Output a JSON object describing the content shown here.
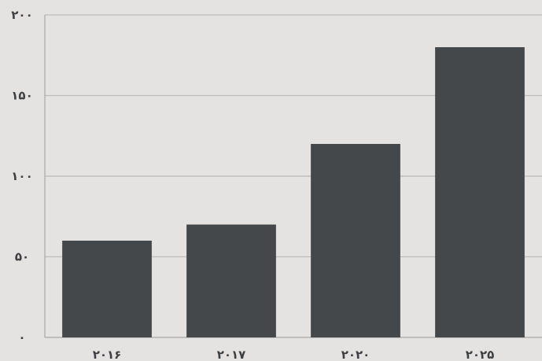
{
  "chart_data": {
    "type": "bar",
    "categories": [
      "۲۰۱۶",
      "۲۰۱۷",
      "۲۰۲۰",
      "۲۰۲۵"
    ],
    "values": [
      60,
      70,
      120,
      180
    ],
    "ylim": [
      0,
      200
    ],
    "yticks": [
      {
        "value": 0,
        "label": "۰"
      },
      {
        "value": 50,
        "label": "۵۰"
      },
      {
        "value": 100,
        "label": "۱۰۰"
      },
      {
        "value": 150,
        "label": "۱۵۰"
      },
      {
        "value": 200,
        "label": "۲۰۰"
      }
    ],
    "grid": true,
    "colors": {
      "bar": "#45484b",
      "grid": "#bdbcba",
      "axis": "#a9a8a6",
      "text": "#3d3f42"
    }
  }
}
